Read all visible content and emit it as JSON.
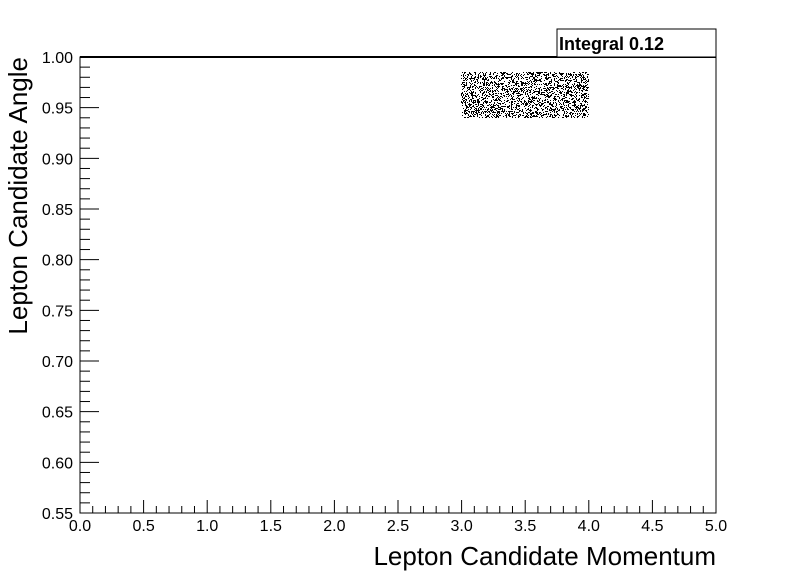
{
  "chart_data": {
    "type": "heatmap",
    "title": "",
    "xlabel": "Lepton Candidate Momentum",
    "ylabel": "Lepton Candidate Angle",
    "xlim": [
      0.0,
      5.0
    ],
    "ylim": [
      0.55,
      1.0
    ],
    "x_ticks": [
      "0.0",
      "0.5",
      "1.0",
      "1.5",
      "2.0",
      "2.5",
      "3.0",
      "3.5",
      "4.0",
      "4.5",
      "5.0"
    ],
    "y_ticks": [
      "0.55",
      "0.60",
      "0.65",
      "0.70",
      "0.75",
      "0.80",
      "0.85",
      "0.90",
      "0.95",
      "1.00"
    ],
    "grid": false,
    "legend": "none",
    "filled_region": {
      "x_range": [
        3.0,
        4.0
      ],
      "y_range": [
        0.94,
        0.985
      ],
      "draw_option": "scatter-density"
    },
    "stats_box": {
      "label": "Integral",
      "value": "0.12",
      "text": "Integral 0.12",
      "placement": "top-right"
    }
  }
}
